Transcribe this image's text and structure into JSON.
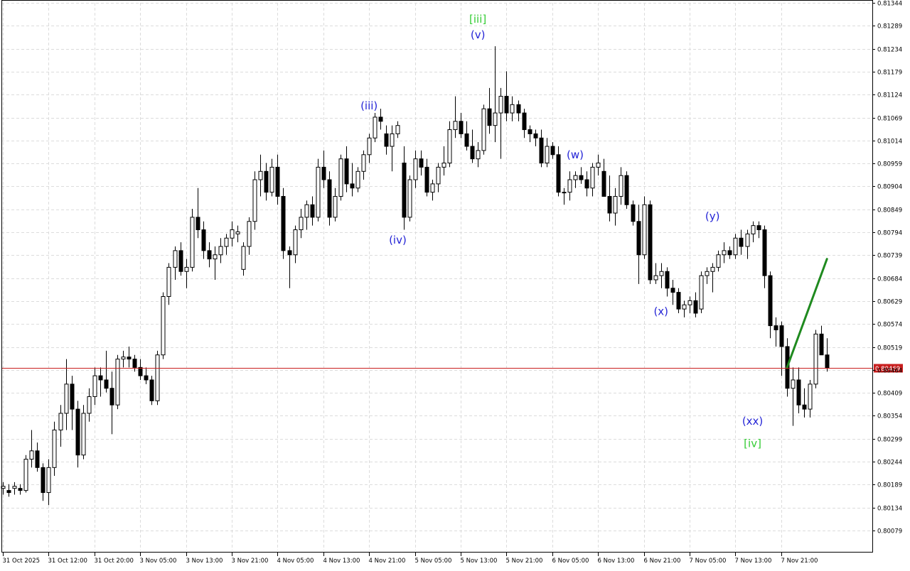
{
  "chart_data": {
    "type": "candlestick",
    "y_axis": {
      "range": [
        0.80079,
        0.81344
      ],
      "tick_labels": [
        "0.81344",
        "0.81289",
        "0.81234",
        "0.81179",
        "0.81124",
        "0.81069",
        "0.81014",
        "0.80959",
        "0.80904",
        "0.80849",
        "0.80794",
        "0.80739",
        "0.80684",
        "0.80629",
        "0.80574",
        "0.80519",
        "0.80464",
        "0.80409",
        "0.80354",
        "0.80299",
        "0.80244",
        "0.80189",
        "0.80134",
        "0.80079"
      ],
      "position": "right"
    },
    "x_axis": {
      "tick_labels": [
        "31 Oct 2025",
        "31 Oct 12:00",
        "31 Oct 20:00",
        "3 Nov 05:00",
        "3 Nov 13:00",
        "3 Nov 21:00",
        "4 Nov 05:00",
        "4 Nov 13:00",
        "4 Nov 21:00",
        "5 Nov 05:00",
        "5 Nov 13:00",
        "5 Nov 21:00",
        "6 Nov 05:00",
        "6 Nov 13:00",
        "6 Nov 21:00",
        "7 Nov 05:00",
        "7 Nov 13:00",
        "7 Nov 21:00"
      ],
      "candles_per_label": 8
    },
    "current_price": {
      "value": 0.80469,
      "label": "0.80469"
    },
    "grid": true,
    "candles": [
      {
        "o": 0.8018,
        "h": 0.80195,
        "l": 0.80165,
        "c": 0.80185
      },
      {
        "o": 0.80175,
        "h": 0.8019,
        "l": 0.8016,
        "c": 0.8017
      },
      {
        "o": 0.8018,
        "h": 0.80195,
        "l": 0.80165,
        "c": 0.80185
      },
      {
        "o": 0.8018,
        "h": 0.8019,
        "l": 0.80165,
        "c": 0.80175
      },
      {
        "o": 0.80175,
        "h": 0.8026,
        "l": 0.8017,
        "c": 0.8025
      },
      {
        "o": 0.8025,
        "h": 0.8032,
        "l": 0.8023,
        "c": 0.8027
      },
      {
        "o": 0.8027,
        "h": 0.8029,
        "l": 0.8022,
        "c": 0.8023
      },
      {
        "o": 0.8023,
        "h": 0.8024,
        "l": 0.8015,
        "c": 0.8017
      },
      {
        "o": 0.8017,
        "h": 0.8025,
        "l": 0.8014,
        "c": 0.8023
      },
      {
        "o": 0.8023,
        "h": 0.8034,
        "l": 0.8021,
        "c": 0.8032
      },
      {
        "o": 0.8032,
        "h": 0.8038,
        "l": 0.8028,
        "c": 0.8036
      },
      {
        "o": 0.8036,
        "h": 0.8049,
        "l": 0.8032,
        "c": 0.8043
      },
      {
        "o": 0.8043,
        "h": 0.8045,
        "l": 0.8032,
        "c": 0.8037
      },
      {
        "o": 0.8037,
        "h": 0.8039,
        "l": 0.8023,
        "c": 0.8026
      },
      {
        "o": 0.8026,
        "h": 0.8038,
        "l": 0.8025,
        "c": 0.8036
      },
      {
        "o": 0.8036,
        "h": 0.8042,
        "l": 0.8034,
        "c": 0.804
      },
      {
        "o": 0.804,
        "h": 0.8047,
        "l": 0.8038,
        "c": 0.8045
      },
      {
        "o": 0.8045,
        "h": 0.8047,
        "l": 0.804,
        "c": 0.8044
      },
      {
        "o": 0.8044,
        "h": 0.8051,
        "l": 0.8041,
        "c": 0.8042
      },
      {
        "o": 0.8042,
        "h": 0.8046,
        "l": 0.8031,
        "c": 0.8038
      },
      {
        "o": 0.8038,
        "h": 0.805,
        "l": 0.8037,
        "c": 0.8049
      },
      {
        "o": 0.8049,
        "h": 0.8051,
        "l": 0.8047,
        "c": 0.80495
      },
      {
        "o": 0.80495,
        "h": 0.8052,
        "l": 0.8047,
        "c": 0.8049
      },
      {
        "o": 0.8049,
        "h": 0.805,
        "l": 0.8046,
        "c": 0.8047
      },
      {
        "o": 0.8047,
        "h": 0.8049,
        "l": 0.8044,
        "c": 0.8045
      },
      {
        "o": 0.8045,
        "h": 0.8047,
        "l": 0.8043,
        "c": 0.8044
      },
      {
        "o": 0.8044,
        "h": 0.8045,
        "l": 0.8038,
        "c": 0.8039
      },
      {
        "o": 0.8039,
        "h": 0.8051,
        "l": 0.8038,
        "c": 0.805
      },
      {
        "o": 0.805,
        "h": 0.8065,
        "l": 0.8049,
        "c": 0.8064
      },
      {
        "o": 0.8064,
        "h": 0.8072,
        "l": 0.8062,
        "c": 0.8071
      },
      {
        "o": 0.8071,
        "h": 0.8076,
        "l": 0.8068,
        "c": 0.8075
      },
      {
        "o": 0.8075,
        "h": 0.8077,
        "l": 0.8069,
        "c": 0.807
      },
      {
        "o": 0.807,
        "h": 0.8073,
        "l": 0.8066,
        "c": 0.8071
      },
      {
        "o": 0.8071,
        "h": 0.8085,
        "l": 0.807,
        "c": 0.8083
      },
      {
        "o": 0.8083,
        "h": 0.809,
        "l": 0.8078,
        "c": 0.808
      },
      {
        "o": 0.808,
        "h": 0.8082,
        "l": 0.8073,
        "c": 0.8075
      },
      {
        "o": 0.8075,
        "h": 0.8077,
        "l": 0.8071,
        "c": 0.8073
      },
      {
        "o": 0.8073,
        "h": 0.8076,
        "l": 0.8068,
        "c": 0.8074
      },
      {
        "o": 0.8074,
        "h": 0.8078,
        "l": 0.8072,
        "c": 0.8076
      },
      {
        "o": 0.8076,
        "h": 0.8079,
        "l": 0.8074,
        "c": 0.8078
      },
      {
        "o": 0.8078,
        "h": 0.8082,
        "l": 0.8076,
        "c": 0.808
      },
      {
        "o": 0.8079,
        "h": 0.8081,
        "l": 0.8077,
        "c": 0.80795
      },
      {
        "o": 0.80705,
        "h": 0.8077,
        "l": 0.8069,
        "c": 0.8076
      },
      {
        "o": 0.8076,
        "h": 0.8083,
        "l": 0.8074,
        "c": 0.8082
      },
      {
        "o": 0.8082,
        "h": 0.8094,
        "l": 0.808,
        "c": 0.8092
      },
      {
        "o": 0.8092,
        "h": 0.8098,
        "l": 0.8088,
        "c": 0.8094
      },
      {
        "o": 0.8094,
        "h": 0.8096,
        "l": 0.8087,
        "c": 0.8089
      },
      {
        "o": 0.8089,
        "h": 0.8097,
        "l": 0.8088,
        "c": 0.8095
      },
      {
        "o": 0.8095,
        "h": 0.8098,
        "l": 0.8086,
        "c": 0.8088
      },
      {
        "o": 0.8088,
        "h": 0.809,
        "l": 0.8073,
        "c": 0.8075
      },
      {
        "o": 0.8075,
        "h": 0.8076,
        "l": 0.8066,
        "c": 0.8074
      },
      {
        "o": 0.8074,
        "h": 0.8081,
        "l": 0.8072,
        "c": 0.808
      },
      {
        "o": 0.808,
        "h": 0.8085,
        "l": 0.8078,
        "c": 0.8083
      },
      {
        "o": 0.8083,
        "h": 0.8087,
        "l": 0.808,
        "c": 0.8086
      },
      {
        "o": 0.8086,
        "h": 0.8088,
        "l": 0.8081,
        "c": 0.8083
      },
      {
        "o": 0.8083,
        "h": 0.8097,
        "l": 0.8082,
        "c": 0.8095
      },
      {
        "o": 0.8095,
        "h": 0.8099,
        "l": 0.809,
        "c": 0.8092
      },
      {
        "o": 0.8092,
        "h": 0.8094,
        "l": 0.8081,
        "c": 0.8083
      },
      {
        "o": 0.8083,
        "h": 0.809,
        "l": 0.8082,
        "c": 0.8088
      },
      {
        "o": 0.8088,
        "h": 0.8098,
        "l": 0.8087,
        "c": 0.8097
      },
      {
        "o": 0.8097,
        "h": 0.81,
        "l": 0.8089,
        "c": 0.8091
      },
      {
        "o": 0.8091,
        "h": 0.8096,
        "l": 0.8088,
        "c": 0.809
      },
      {
        "o": 0.809,
        "h": 0.8095,
        "l": 0.8089,
        "c": 0.8094
      },
      {
        "o": 0.8094,
        "h": 0.8099,
        "l": 0.8092,
        "c": 0.8098
      },
      {
        "o": 0.8098,
        "h": 0.8103,
        "l": 0.8096,
        "c": 0.8102
      },
      {
        "o": 0.8102,
        "h": 0.8108,
        "l": 0.8101,
        "c": 0.8107
      },
      {
        "o": 0.8107,
        "h": 0.8109,
        "l": 0.8104,
        "c": 0.8106
      },
      {
        "o": 0.8103,
        "h": 0.8105,
        "l": 0.8098,
        "c": 0.81
      },
      {
        "o": 0.81,
        "h": 0.8105,
        "l": 0.8094,
        "c": 0.8103
      },
      {
        "o": 0.8103,
        "h": 0.8106,
        "l": 0.8102,
        "c": 0.8105
      },
      {
        "o": 0.8096,
        "h": 0.81,
        "l": 0.808,
        "c": 0.8083
      },
      {
        "o": 0.8083,
        "h": 0.8093,
        "l": 0.8082,
        "c": 0.8092
      },
      {
        "o": 0.8092,
        "h": 0.8099,
        "l": 0.809,
        "c": 0.8097
      },
      {
        "o": 0.8097,
        "h": 0.8099,
        "l": 0.8093,
        "c": 0.8095
      },
      {
        "o": 0.8095,
        "h": 0.8097,
        "l": 0.8088,
        "c": 0.8089
      },
      {
        "o": 0.8089,
        "h": 0.8092,
        "l": 0.8087,
        "c": 0.8091
      },
      {
        "o": 0.8091,
        "h": 0.8096,
        "l": 0.8089,
        "c": 0.8095
      },
      {
        "o": 0.8095,
        "h": 0.81,
        "l": 0.8093,
        "c": 0.8096
      },
      {
        "o": 0.8096,
        "h": 0.8106,
        "l": 0.8095,
        "c": 0.8104
      },
      {
        "o": 0.8104,
        "h": 0.8112,
        "l": 0.8102,
        "c": 0.8106
      },
      {
        "o": 0.8106,
        "h": 0.8108,
        "l": 0.8102,
        "c": 0.8103
      },
      {
        "o": 0.8103,
        "h": 0.8106,
        "l": 0.8099,
        "c": 0.81
      },
      {
        "o": 0.81,
        "h": 0.8104,
        "l": 0.8096,
        "c": 0.8097
      },
      {
        "o": 0.8097,
        "h": 0.8101,
        "l": 0.8095,
        "c": 0.8099
      },
      {
        "o": 0.8099,
        "h": 0.811,
        "l": 0.8098,
        "c": 0.8109
      },
      {
        "o": 0.8109,
        "h": 0.8114,
        "l": 0.8103,
        "c": 0.8105
      },
      {
        "o": 0.8105,
        "h": 0.8124,
        "l": 0.8101,
        "c": 0.8108
      },
      {
        "o": 0.8108,
        "h": 0.8114,
        "l": 0.8097,
        "c": 0.8112
      },
      {
        "o": 0.8112,
        "h": 0.8118,
        "l": 0.8106,
        "c": 0.8108
      },
      {
        "o": 0.8108,
        "h": 0.8112,
        "l": 0.8106,
        "c": 0.811
      },
      {
        "o": 0.811,
        "h": 0.8111,
        "l": 0.8106,
        "c": 0.8108
      },
      {
        "o": 0.8108,
        "h": 0.8109,
        "l": 0.8102,
        "c": 0.8104
      },
      {
        "o": 0.8104,
        "h": 0.8105,
        "l": 0.8101,
        "c": 0.8103
      },
      {
        "o": 0.8103,
        "h": 0.8104,
        "l": 0.81,
        "c": 0.8102
      },
      {
        "o": 0.8102,
        "h": 0.8104,
        "l": 0.8095,
        "c": 0.8096
      },
      {
        "o": 0.8096,
        "h": 0.8102,
        "l": 0.8095,
        "c": 0.81
      },
      {
        "o": 0.81,
        "h": 0.8101,
        "l": 0.8097,
        "c": 0.8098
      },
      {
        "o": 0.8098,
        "h": 0.81,
        "l": 0.8088,
        "c": 0.8089
      },
      {
        "o": 0.8089,
        "h": 0.809,
        "l": 0.8086,
        "c": 0.8089
      },
      {
        "o": 0.8089,
        "h": 0.8094,
        "l": 0.8087,
        "c": 0.8092
      },
      {
        "o": 0.8092,
        "h": 0.8094,
        "l": 0.809,
        "c": 0.8093
      },
      {
        "o": 0.8093,
        "h": 0.8095,
        "l": 0.8091,
        "c": 0.8092
      },
      {
        "o": 0.8092,
        "h": 0.8094,
        "l": 0.8088,
        "c": 0.809
      },
      {
        "o": 0.809,
        "h": 0.8096,
        "l": 0.8088,
        "c": 0.8095
      },
      {
        "o": 0.8095,
        "h": 0.8098,
        "l": 0.8093,
        "c": 0.8096
      },
      {
        "o": 0.8094,
        "h": 0.8097,
        "l": 0.8088,
        "c": 0.8088
      },
      {
        "o": 0.8088,
        "h": 0.8093,
        "l": 0.8082,
        "c": 0.8084
      },
      {
        "o": 0.8084,
        "h": 0.809,
        "l": 0.8081,
        "c": 0.8088
      },
      {
        "o": 0.8088,
        "h": 0.8095,
        "l": 0.8086,
        "c": 0.8093
      },
      {
        "o": 0.8093,
        "h": 0.8094,
        "l": 0.8085,
        "c": 0.8086
      },
      {
        "o": 0.8086,
        "h": 0.8087,
        "l": 0.8081,
        "c": 0.8082
      },
      {
        "o": 0.8082,
        "h": 0.8086,
        "l": 0.8067,
        "c": 0.8074
      },
      {
        "o": 0.8074,
        "h": 0.8088,
        "l": 0.8073,
        "c": 0.8086
      },
      {
        "o": 0.8086,
        "h": 0.8087,
        "l": 0.8067,
        "c": 0.8068
      },
      {
        "o": 0.8068,
        "h": 0.8072,
        "l": 0.8067,
        "c": 0.8069
      },
      {
        "o": 0.8069,
        "h": 0.8072,
        "l": 0.8066,
        "c": 0.807
      },
      {
        "o": 0.807,
        "h": 0.8071,
        "l": 0.8064,
        "c": 0.8066
      },
      {
        "o": 0.8066,
        "h": 0.8068,
        "l": 0.8062,
        "c": 0.8065
      },
      {
        "o": 0.8065,
        "h": 0.8066,
        "l": 0.806,
        "c": 0.8061
      },
      {
        "o": 0.8061,
        "h": 0.8063,
        "l": 0.8059,
        "c": 0.8062
      },
      {
        "o": 0.8062,
        "h": 0.8064,
        "l": 0.806,
        "c": 0.8063
      },
      {
        "o": 0.8063,
        "h": 0.8065,
        "l": 0.8059,
        "c": 0.806
      },
      {
        "o": 0.8061,
        "h": 0.807,
        "l": 0.806,
        "c": 0.8069
      },
      {
        "o": 0.8069,
        "h": 0.8071,
        "l": 0.8067,
        "c": 0.807
      },
      {
        "o": 0.807,
        "h": 0.8072,
        "l": 0.8065,
        "c": 0.8071
      },
      {
        "o": 0.8071,
        "h": 0.8075,
        "l": 0.807,
        "c": 0.8074
      },
      {
        "o": 0.8074,
        "h": 0.8077,
        "l": 0.8072,
        "c": 0.8075
      },
      {
        "o": 0.8075,
        "h": 0.8076,
        "l": 0.8073,
        "c": 0.8074
      },
      {
        "o": 0.8074,
        "h": 0.8079,
        "l": 0.8073,
        "c": 0.8078
      },
      {
        "o": 0.8078,
        "h": 0.808,
        "l": 0.8074,
        "c": 0.8076
      },
      {
        "o": 0.8076,
        "h": 0.808,
        "l": 0.8073,
        "c": 0.8079
      },
      {
        "o": 0.8079,
        "h": 0.8082,
        "l": 0.8077,
        "c": 0.8081
      },
      {
        "o": 0.8081,
        "h": 0.8082,
        "l": 0.8078,
        "c": 0.808
      },
      {
        "o": 0.808,
        "h": 0.8081,
        "l": 0.8066,
        "c": 0.8069
      },
      {
        "o": 0.8069,
        "h": 0.807,
        "l": 0.8054,
        "c": 0.8057
      },
      {
        "o": 0.8057,
        "h": 0.8059,
        "l": 0.8052,
        "c": 0.8056
      },
      {
        "o": 0.8057,
        "h": 0.8058,
        "l": 0.8045,
        "c": 0.8052
      },
      {
        "o": 0.8052,
        "h": 0.8054,
        "l": 0.804,
        "c": 0.8042
      },
      {
        "o": 0.8042,
        "h": 0.8047,
        "l": 0.8033,
        "c": 0.8044
      },
      {
        "o": 0.8044,
        "h": 0.8047,
        "l": 0.8036,
        "c": 0.8038
      },
      {
        "o": 0.8038,
        "h": 0.8042,
        "l": 0.8035,
        "c": 0.8037
      },
      {
        "o": 0.8037,
        "h": 0.8044,
        "l": 0.8035,
        "c": 0.8043
      },
      {
        "o": 0.8043,
        "h": 0.8056,
        "l": 0.8042,
        "c": 0.8055
      },
      {
        "o": 0.8055,
        "h": 0.8057,
        "l": 0.805,
        "c": 0.805
      },
      {
        "o": 0.805,
        "h": 0.8054,
        "l": 0.8046,
        "c": 0.80469
      }
    ],
    "wave_labels": [
      {
        "text": "[iii]",
        "candle": 83,
        "price": 0.81296,
        "color": "#33cc33"
      },
      {
        "text": "(v)",
        "candle": 83,
        "price": 0.81259,
        "color": "#2424d6"
      },
      {
        "text": "(iii)",
        "candle": 64,
        "price": 0.81089,
        "color": "#2424d6"
      },
      {
        "text": "(iv)",
        "candle": 69,
        "price": 0.80767,
        "color": "#2424d6"
      },
      {
        "text": "(w)",
        "candle": 100,
        "price": 0.80971,
        "color": "#2424d6"
      },
      {
        "text": "(x)",
        "candle": 115,
        "price": 0.80596,
        "color": "#2424d6"
      },
      {
        "text": "(y)",
        "candle": 124,
        "price": 0.80824,
        "color": "#2424d6"
      },
      {
        "text": "(xx)",
        "candle": 131,
        "price": 0.80333,
        "color": "#2424d6"
      },
      {
        "text": "[iv]",
        "candle": 131,
        "price": 0.80279,
        "color": "#33cc33"
      }
    ],
    "projection": {
      "color": "#1f8a1f",
      "from": {
        "candle": 137,
        "price": 0.80469
      },
      "to": {
        "candle": 144,
        "price": 0.8073
      }
    }
  }
}
